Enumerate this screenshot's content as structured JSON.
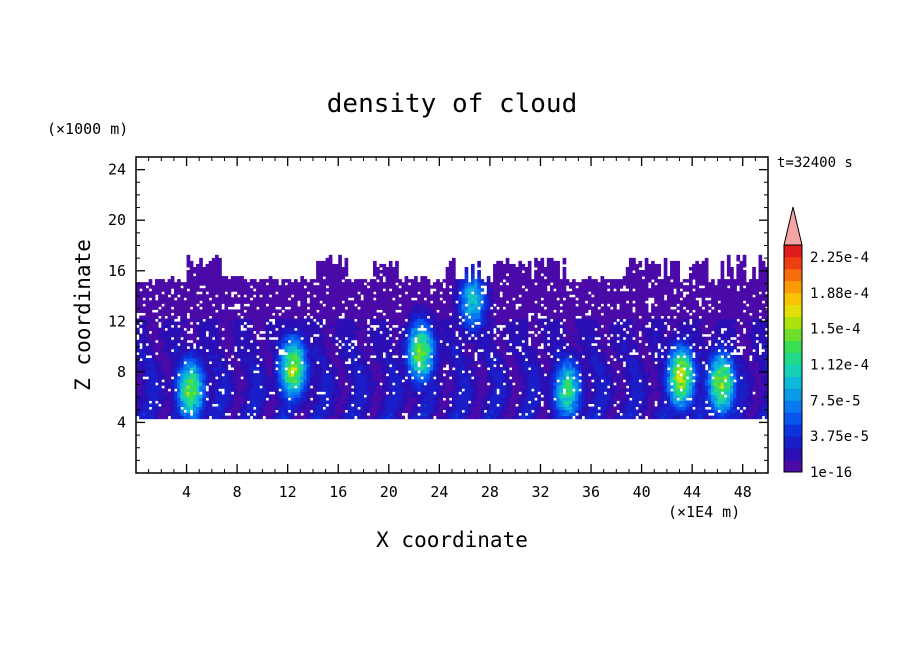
{
  "chart_data": {
    "type": "heatmap",
    "title": "density of cloud",
    "xlabel": "X coordinate",
    "ylabel": "Z coordinate",
    "x_unit": "(×1E4 m)",
    "y_unit": "(×1000 m)",
    "time_label": "t=32400 s",
    "xlim": [
      0,
      50
    ],
    "ylim": [
      0,
      25
    ],
    "x_ticks": [
      "4",
      "8",
      "12",
      "16",
      "20",
      "24",
      "28",
      "32",
      "36",
      "40",
      "44",
      "48"
    ],
    "y_ticks": [
      "4",
      "8",
      "12",
      "16",
      "20",
      "24"
    ],
    "colorbar": {
      "labels": [
        "2.25e-4",
        "1.88e-4",
        "1.5e-4",
        "1.12e-4",
        "7.5e-5",
        "3.75e-5",
        "1e-16"
      ],
      "colors": [
        "#4b0aa8",
        "#2a0fb5",
        "#1a1ec8",
        "#0b34dc",
        "#0a55ee",
        "#0a78f0",
        "#0a9ae6",
        "#10b8d8",
        "#17cfb4",
        "#22d889",
        "#3ade55",
        "#6ee02a",
        "#aee20f",
        "#e3e009",
        "#f6c405",
        "#f99b07",
        "#f56e0b",
        "#ee3f12",
        "#e01b1b"
      ],
      "overflow_color": "#f5a5a5"
    },
    "cloud": {
      "base_z": 4.3,
      "main_top_z": 15.2,
      "tower_top_z": 17.2,
      "core_zone_z": [
        4.5,
        12
      ],
      "max_value": 0.000225,
      "hot_cores": [
        {
          "x": 4.2,
          "z": 6.5,
          "level": 13
        },
        {
          "x": 12.3,
          "z": 8.2,
          "level": 14
        },
        {
          "x": 22.4,
          "z": 9.5,
          "level": 13
        },
        {
          "x": 26.5,
          "z": 13.5,
          "level": 9
        },
        {
          "x": 34.0,
          "z": 6.5,
          "level": 11
        },
        {
          "x": 43.0,
          "z": 7.5,
          "level": 15
        },
        {
          "x": 46.2,
          "z": 7.0,
          "level": 14
        }
      ]
    }
  }
}
